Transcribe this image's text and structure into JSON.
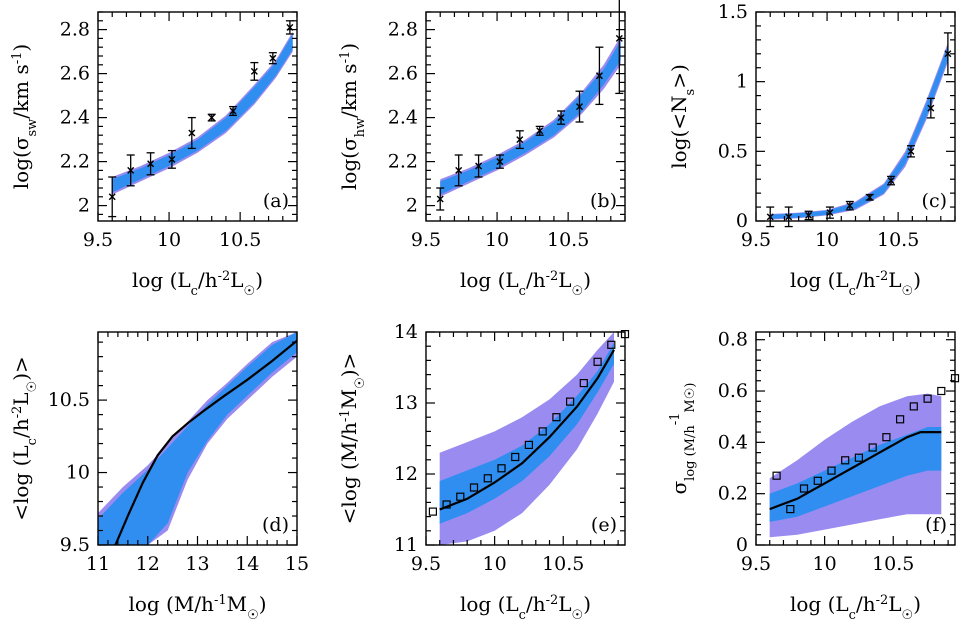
{
  "colors": {
    "outer_band": "#9A8BF0",
    "inner_band": "#2F8EF0",
    "line": "#000000",
    "marker": "#000000"
  },
  "chart_data": [
    {
      "id": "a",
      "type": "scatter",
      "panel_label": "(a)",
      "xlabel": "log (Lc/h-2L☉)",
      "ylabel": "log(σsw/km s-1)",
      "xlim": [
        9.5,
        10.9
      ],
      "ylim": [
        1.93,
        2.88
      ],
      "xticks": [
        9.5,
        10,
        10.5
      ],
      "xtick_labels": [
        "9.5",
        "10",
        "10.5"
      ],
      "yticks": [
        2,
        2.2,
        2.4,
        2.6,
        2.8
      ],
      "ytick_labels": [
        "2",
        "2.2",
        "2.4",
        "2.6",
        "2.8"
      ],
      "bands": [
        {
          "style": "outer",
          "x": [
            9.6,
            9.8,
            10.0,
            10.2,
            10.4,
            10.6,
            10.75,
            10.87
          ],
          "lo": [
            2.05,
            2.11,
            2.17,
            2.24,
            2.33,
            2.46,
            2.58,
            2.7
          ],
          "hi": [
            2.13,
            2.18,
            2.24,
            2.31,
            2.41,
            2.55,
            2.66,
            2.79
          ]
        },
        {
          "style": "inner",
          "x": [
            9.6,
            9.8,
            10.0,
            10.2,
            10.4,
            10.6,
            10.75,
            10.87
          ],
          "lo": [
            2.06,
            2.12,
            2.18,
            2.25,
            2.34,
            2.47,
            2.59,
            2.71
          ],
          "hi": [
            2.12,
            2.17,
            2.23,
            2.3,
            2.4,
            2.54,
            2.65,
            2.78
          ]
        }
      ],
      "points": [
        {
          "x": 9.6,
          "y": 2.04,
          "err": 0.09
        },
        {
          "x": 9.73,
          "y": 2.16,
          "err": 0.07
        },
        {
          "x": 9.87,
          "y": 2.19,
          "err": 0.05
        },
        {
          "x": 10.02,
          "y": 2.21,
          "err": 0.04
        },
        {
          "x": 10.16,
          "y": 2.33,
          "err": 0.07
        },
        {
          "x": 10.3,
          "y": 2.4,
          "err": 0.015
        },
        {
          "x": 10.45,
          "y": 2.43,
          "err": 0.02
        },
        {
          "x": 10.6,
          "y": 2.61,
          "err": 0.04
        },
        {
          "x": 10.73,
          "y": 2.67,
          "err": 0.025
        },
        {
          "x": 10.85,
          "y": 2.81,
          "err": 0.03
        }
      ]
    },
    {
      "id": "b",
      "type": "scatter",
      "panel_label": "(b)",
      "xlabel": "log (Lc/h-2L☉)",
      "ylabel": "log(σhw/km s-1)",
      "xlim": [
        9.5,
        10.9
      ],
      "ylim": [
        1.93,
        2.88
      ],
      "xticks": [
        9.5,
        10,
        10.5
      ],
      "xtick_labels": [
        "9.5",
        "10",
        "10.5"
      ],
      "yticks": [
        2,
        2.2,
        2.4,
        2.6,
        2.8
      ],
      "ytick_labels": [
        "2",
        "2.2",
        "2.4",
        "2.6",
        "2.8"
      ],
      "bands": [
        {
          "style": "outer",
          "x": [
            9.6,
            9.8,
            10.0,
            10.2,
            10.4,
            10.6,
            10.75,
            10.87
          ],
          "lo": [
            2.04,
            2.1,
            2.16,
            2.23,
            2.31,
            2.42,
            2.53,
            2.64
          ],
          "hi": [
            2.12,
            2.17,
            2.23,
            2.3,
            2.39,
            2.52,
            2.64,
            2.77
          ]
        },
        {
          "style": "inner",
          "x": [
            9.6,
            9.8,
            10.0,
            10.2,
            10.4,
            10.6,
            10.75,
            10.87
          ],
          "lo": [
            2.05,
            2.11,
            2.17,
            2.24,
            2.32,
            2.43,
            2.55,
            2.66
          ],
          "hi": [
            2.11,
            2.16,
            2.22,
            2.29,
            2.38,
            2.51,
            2.62,
            2.75
          ]
        }
      ],
      "points": [
        {
          "x": 9.6,
          "y": 2.03,
          "err": 0.05
        },
        {
          "x": 9.73,
          "y": 2.16,
          "err": 0.07
        },
        {
          "x": 9.87,
          "y": 2.18,
          "err": 0.05
        },
        {
          "x": 10.02,
          "y": 2.2,
          "err": 0.03
        },
        {
          "x": 10.16,
          "y": 2.3,
          "err": 0.04
        },
        {
          "x": 10.3,
          "y": 2.34,
          "err": 0.02
        },
        {
          "x": 10.45,
          "y": 2.4,
          "err": 0.03
        },
        {
          "x": 10.58,
          "y": 2.45,
          "err": 0.07
        },
        {
          "x": 10.72,
          "y": 2.59,
          "err": 0.13
        },
        {
          "x": 10.86,
          "y": 2.76,
          "err": 0.25
        }
      ]
    },
    {
      "id": "c",
      "type": "scatter",
      "panel_label": "(c)",
      "xlabel": "log (Lc/h-2L☉)",
      "ylabel": "log(<Ns>)",
      "xlim": [
        9.5,
        10.9
      ],
      "ylim": [
        0,
        1.5
      ],
      "xticks": [
        9.5,
        10,
        10.5
      ],
      "xtick_labels": [
        "9.5",
        "10",
        "10.5"
      ],
      "yticks": [
        0,
        0.5,
        1,
        1.5
      ],
      "ytick_labels": [
        "0",
        "0.5",
        "1",
        "1.5"
      ],
      "bands": [
        {
          "style": "outer",
          "x": [
            9.6,
            9.8,
            10.0,
            10.2,
            10.4,
            10.55,
            10.7,
            10.85
          ],
          "lo": [
            0.01,
            0.02,
            0.04,
            0.08,
            0.19,
            0.39,
            0.73,
            1.14
          ],
          "hi": [
            0.05,
            0.06,
            0.08,
            0.14,
            0.27,
            0.5,
            0.87,
            1.28
          ]
        },
        {
          "style": "inner",
          "x": [
            9.6,
            9.8,
            10.0,
            10.2,
            10.4,
            10.55,
            10.7,
            10.85
          ],
          "lo": [
            0.015,
            0.025,
            0.045,
            0.09,
            0.2,
            0.41,
            0.75,
            1.16
          ],
          "hi": [
            0.045,
            0.055,
            0.075,
            0.13,
            0.26,
            0.48,
            0.85,
            1.26
          ]
        }
      ],
      "points": [
        {
          "x": 9.6,
          "y": 0.03,
          "err": 0.07
        },
        {
          "x": 9.73,
          "y": 0.03,
          "err": 0.07
        },
        {
          "x": 9.87,
          "y": 0.04,
          "err": 0.03
        },
        {
          "x": 10.02,
          "y": 0.06,
          "err": 0.04
        },
        {
          "x": 10.16,
          "y": 0.11,
          "err": 0.03
        },
        {
          "x": 10.3,
          "y": 0.17,
          "err": 0.02
        },
        {
          "x": 10.45,
          "y": 0.29,
          "err": 0.03
        },
        {
          "x": 10.59,
          "y": 0.5,
          "err": 0.04
        },
        {
          "x": 10.73,
          "y": 0.81,
          "err": 0.07
        },
        {
          "x": 10.85,
          "y": 1.2,
          "err": 0.15
        }
      ]
    },
    {
      "id": "d",
      "type": "line",
      "panel_label": "(d)",
      "xlabel": "log (M/h-1M☉)",
      "ylabel": "<log (Lc/h-2L☉)>",
      "xlim": [
        11,
        15
      ],
      "ylim": [
        9.5,
        10.97
      ],
      "xticks": [
        11,
        12,
        13,
        14,
        15
      ],
      "xtick_labels": [
        "11",
        "12",
        "13",
        "14",
        "15"
      ],
      "yticks": [
        9.5,
        10,
        10.5
      ],
      "ytick_labels": [
        "9.5",
        "10",
        "10.5"
      ],
      "bands": [
        {
          "style": "outer",
          "x": [
            11.0,
            11.5,
            12.0,
            12.4,
            12.8,
            13.2,
            13.6,
            14.0,
            14.5,
            15.0
          ],
          "lo": [
            9.5,
            9.5,
            9.5,
            9.6,
            9.95,
            10.2,
            10.37,
            10.5,
            10.66,
            10.8
          ],
          "hi": [
            9.72,
            9.9,
            10.05,
            10.2,
            10.35,
            10.5,
            10.62,
            10.75,
            10.9,
            10.97
          ]
        },
        {
          "style": "inner",
          "x": [
            11.0,
            11.5,
            12.0,
            12.4,
            12.8,
            13.2,
            13.6,
            14.0,
            14.5,
            15.0
          ],
          "lo": [
            9.5,
            9.5,
            9.5,
            9.65,
            10.0,
            10.22,
            10.4,
            10.53,
            10.69,
            10.83
          ],
          "hi": [
            9.68,
            9.86,
            10.02,
            10.17,
            10.32,
            10.47,
            10.6,
            10.73,
            10.88,
            10.97
          ]
        }
      ],
      "line": {
        "x": [
          11.35,
          11.6,
          11.9,
          12.2,
          12.5,
          12.8,
          13.1,
          13.5,
          14.0,
          14.5,
          15.0
        ],
        "y": [
          9.5,
          9.7,
          9.93,
          10.12,
          10.25,
          10.34,
          10.42,
          10.52,
          10.64,
          10.77,
          10.91
        ]
      }
    },
    {
      "id": "e",
      "type": "scatter",
      "panel_label": "(e)",
      "xlabel": "log (Lc/h-2L☉)",
      "ylabel": "<log (M/h-1M☉)>",
      "xlim": [
        9.5,
        10.95
      ],
      "ylim": [
        11,
        14
      ],
      "xticks": [
        9.5,
        10,
        10.5
      ],
      "xtick_labels": [
        "9.5",
        "10",
        "10.5"
      ],
      "yticks": [
        11,
        12,
        13,
        14
      ],
      "ytick_labels": [
        "11",
        "12",
        "13",
        "14"
      ],
      "bands": [
        {
          "style": "outer",
          "x": [
            9.6,
            9.8,
            10.0,
            10.2,
            10.4,
            10.6,
            10.75,
            10.87
          ],
          "lo": [
            11.0,
            11.05,
            11.2,
            11.45,
            11.85,
            12.35,
            12.85,
            13.3
          ],
          "hi": [
            12.3,
            12.45,
            12.6,
            12.8,
            13.05,
            13.4,
            13.75,
            14.05
          ]
        },
        {
          "style": "inner",
          "x": [
            9.6,
            9.8,
            10.0,
            10.2,
            10.4,
            10.6,
            10.75,
            10.87
          ],
          "lo": [
            11.3,
            11.45,
            11.65,
            11.9,
            12.25,
            12.7,
            13.15,
            13.55
          ],
          "hi": [
            11.9,
            12.05,
            12.2,
            12.4,
            12.7,
            13.1,
            13.45,
            13.85
          ]
        }
      ],
      "line": {
        "x": [
          9.6,
          9.8,
          10.0,
          10.2,
          10.4,
          10.6,
          10.75,
          10.87
        ],
        "y": [
          11.5,
          11.65,
          11.88,
          12.15,
          12.52,
          12.95,
          13.35,
          13.75
        ]
      },
      "markers": {
        "x": [
          9.55,
          9.65,
          9.75,
          9.85,
          9.95,
          10.05,
          10.15,
          10.25,
          10.35,
          10.45,
          10.55,
          10.65,
          10.75,
          10.85,
          10.95
        ],
        "y": [
          11.47,
          11.57,
          11.68,
          11.81,
          11.94,
          12.08,
          12.24,
          12.41,
          12.6,
          12.8,
          13.02,
          13.28,
          13.58,
          13.82,
          13.97
        ]
      }
    },
    {
      "id": "f",
      "type": "scatter",
      "panel_label": "(f)",
      "xlabel": "log (Lc/h-2L☉)",
      "ylabel": "σlog (M/h-1M☉)",
      "xlim": [
        9.5,
        10.95
      ],
      "ylim": [
        0,
        0.83
      ],
      "xticks": [
        9.5,
        10,
        10.5
      ],
      "xtick_labels": [
        "9.5",
        "10",
        "10.5"
      ],
      "yticks": [
        0,
        0.2,
        0.4,
        0.6,
        0.8
      ],
      "ytick_labels": [
        "0",
        "0.2",
        "0.4",
        "0.6",
        "0.8"
      ],
      "bands": [
        {
          "style": "outer",
          "x": [
            9.6,
            9.8,
            10.0,
            10.2,
            10.4,
            10.6,
            10.75,
            10.85
          ],
          "lo": [
            0.03,
            0.04,
            0.06,
            0.08,
            0.1,
            0.12,
            0.12,
            0.12
          ],
          "hi": [
            0.26,
            0.33,
            0.41,
            0.48,
            0.54,
            0.58,
            0.59,
            0.58
          ]
        },
        {
          "style": "inner",
          "x": [
            9.6,
            9.8,
            10.0,
            10.2,
            10.4,
            10.6,
            10.75,
            10.85
          ],
          "lo": [
            0.09,
            0.11,
            0.15,
            0.19,
            0.23,
            0.27,
            0.29,
            0.29
          ],
          "hi": [
            0.2,
            0.24,
            0.29,
            0.34,
            0.39,
            0.43,
            0.46,
            0.46
          ]
        }
      ],
      "line": {
        "x": [
          9.6,
          9.7,
          9.8,
          9.9,
          10.0,
          10.1,
          10.2,
          10.3,
          10.4,
          10.5,
          10.6,
          10.7,
          10.8,
          10.85
        ],
        "y": [
          0.14,
          0.16,
          0.18,
          0.21,
          0.24,
          0.27,
          0.3,
          0.33,
          0.36,
          0.39,
          0.42,
          0.44,
          0.44,
          0.44
        ]
      },
      "markers": {
        "x": [
          9.65,
          9.75,
          9.85,
          9.95,
          10.05,
          10.15,
          10.25,
          10.35,
          10.45,
          10.55,
          10.65,
          10.75,
          10.85,
          10.95
        ],
        "y": [
          0.27,
          0.14,
          0.22,
          0.25,
          0.29,
          0.33,
          0.34,
          0.38,
          0.42,
          0.49,
          0.54,
          0.57,
          0.6,
          0.65
        ]
      }
    }
  ]
}
